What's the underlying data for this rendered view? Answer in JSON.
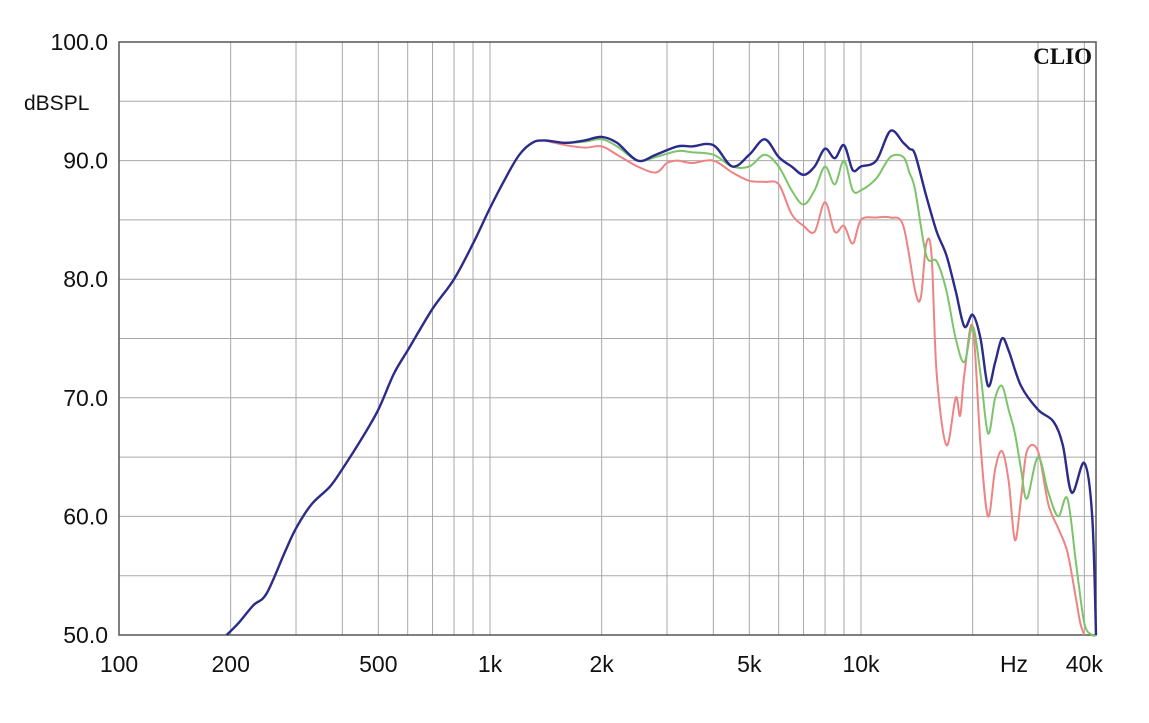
{
  "chart_data": {
    "type": "line",
    "title": "",
    "brand_label": "CLIO",
    "ylabel": "dBSPL",
    "xlabel": "Hz",
    "x_scale": "log",
    "xlim": [
      100,
      43000
    ],
    "ylim": [
      50,
      100
    ],
    "grid": true,
    "legend": "none",
    "y_ticks": [
      {
        "value": 50,
        "label": "50.0"
      },
      {
        "value": 60,
        "label": "60.0"
      },
      {
        "value": 70,
        "label": "70.0"
      },
      {
        "value": 80,
        "label": "80.0"
      },
      {
        "value": 90,
        "label": "90.0"
      },
      {
        "value": 100,
        "label": "100.0"
      }
    ],
    "x_ticks": [
      {
        "value": 100,
        "label": "100"
      },
      {
        "value": 200,
        "label": "200"
      },
      {
        "value": 500,
        "label": "500"
      },
      {
        "value": 1000,
        "label": "1k"
      },
      {
        "value": 2000,
        "label": "2k"
      },
      {
        "value": 5000,
        "label": "5k"
      },
      {
        "value": 10000,
        "label": "10k"
      },
      {
        "value": 40000,
        "label": "40k"
      }
    ],
    "series": [
      {
        "color": "#2b2b8a",
        "x": [
          195,
          210,
          230,
          250,
          280,
          300,
          330,
          370,
          400,
          450,
          500,
          550,
          600,
          700,
          800,
          900,
          1000,
          1100,
          1200,
          1300,
          1400,
          1600,
          1800,
          2000,
          2200,
          2500,
          2800,
          3200,
          3500,
          4000,
          4500,
          5000,
          5500,
          6000,
          6500,
          7000,
          7500,
          8000,
          8500,
          9000,
          9500,
          10000,
          11000,
          12000,
          13000,
          13500,
          14000,
          15000,
          16000,
          17000,
          18000,
          19000,
          20000,
          21000,
          22000,
          23000,
          24000,
          25000,
          27000,
          30000,
          33000,
          35000,
          37000,
          40000,
          42000,
          43000
        ],
        "y": [
          50,
          51,
          52.5,
          53.5,
          57,
          59,
          61,
          62.5,
          64,
          66.5,
          69,
          72,
          74,
          77.5,
          80,
          83,
          86,
          88.5,
          90.5,
          91.5,
          91.7,
          91.5,
          91.7,
          92,
          91.5,
          90,
          90.5,
          91.2,
          91.2,
          91.3,
          89.5,
          90.5,
          91.8,
          90.3,
          89.5,
          88.8,
          89.5,
          91,
          90.2,
          91.3,
          89.2,
          89.5,
          90,
          92.5,
          91.5,
          91,
          90.5,
          87,
          84,
          82,
          79,
          76,
          77,
          75,
          71,
          73,
          75,
          74,
          71,
          69,
          68,
          66,
          62,
          64.5,
          60,
          50
        ]
      },
      {
        "color": "#7cc46a",
        "x": [
          1400,
          1600,
          1800,
          2000,
          2200,
          2500,
          2800,
          3200,
          3500,
          4000,
          4500,
          5000,
          5500,
          6000,
          6500,
          7000,
          7500,
          8000,
          8500,
          9000,
          9500,
          10000,
          11000,
          12000,
          13000,
          13500,
          14000,
          15000,
          16000,
          17000,
          18000,
          19000,
          20000,
          21000,
          22000,
          23000,
          24000,
          25000,
          26000,
          27000,
          28000,
          30000,
          32000,
          34000,
          36000,
          38000,
          40000,
          42000,
          43000
        ],
        "y": [
          91.7,
          91.5,
          91.6,
          91.8,
          91.2,
          90,
          90.3,
          90.8,
          90.7,
          90.5,
          89.5,
          89.5,
          90.5,
          89.5,
          87.5,
          86.3,
          87.5,
          89.5,
          88,
          90,
          87.5,
          87.5,
          88.5,
          90.3,
          90.3,
          89,
          87.5,
          82,
          81.5,
          79,
          75,
          73,
          76,
          72,
          67,
          70,
          71,
          69,
          67,
          64,
          61.5,
          65,
          62,
          60,
          61.5,
          56,
          51,
          50,
          50
        ]
      },
      {
        "color": "#ee8383",
        "x": [
          1400,
          1600,
          1800,
          2000,
          2200,
          2500,
          2800,
          3000,
          3200,
          3500,
          4000,
          4500,
          5000,
          5500,
          6000,
          6500,
          7000,
          7500,
          8000,
          8500,
          9000,
          9500,
          10000,
          11000,
          12000,
          13000,
          14000,
          14500,
          15000,
          15500,
          16000,
          17000,
          18000,
          18500,
          19000,
          20000,
          21000,
          22000,
          23000,
          24000,
          25000,
          26000,
          27000,
          28000,
          30000,
          32000,
          34000,
          36000,
          38000,
          39000,
          40000
        ],
        "y": [
          91.7,
          91.3,
          91.1,
          91.2,
          90.5,
          89.5,
          89,
          89.8,
          90,
          89.8,
          90,
          89,
          88.3,
          88.2,
          88,
          85.5,
          84.5,
          84,
          86.5,
          84,
          84.5,
          83,
          85,
          85.2,
          85.2,
          84.5,
          79,
          78.5,
          83,
          82,
          72,
          66,
          70,
          68.5,
          72,
          76,
          66,
          60,
          64,
          65.5,
          63,
          58,
          61.5,
          65.5,
          65.5,
          61,
          59,
          57,
          53,
          51,
          50
        ]
      }
    ]
  }
}
